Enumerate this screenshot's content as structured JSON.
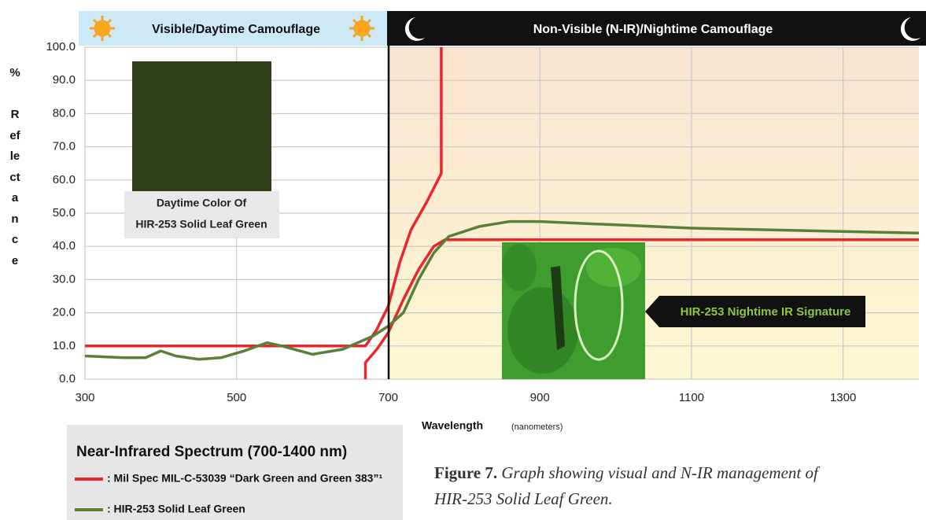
{
  "chart_data": {
    "type": "line",
    "bands": [
      "Visible/Daytime Camouflage",
      "Non-Visible (N-IR)/Nightime Camouflage"
    ],
    "xlabel": "Wavelength",
    "xunit": "(nanometers)",
    "ylabel": "Reflectance",
    "yunit": "%",
    "xlim": [
      300,
      1400
    ],
    "xticks": [
      300,
      500,
      700,
      900,
      1100,
      1300
    ],
    "ylim": [
      0,
      100
    ],
    "yticks": [
      {
        "value": 0,
        "label": "0.0"
      },
      {
        "value": 10,
        "label": "10.0"
      },
      {
        "value": 20,
        "label": "20.0"
      },
      {
        "value": 30,
        "label": "30.0"
      },
      {
        "value": 40,
        "label": "40.0"
      },
      {
        "value": 50,
        "label": "50.0"
      },
      {
        "value": 60,
        "label": "60.0"
      },
      {
        "value": 70,
        "label": "70.0"
      },
      {
        "value": 80,
        "label": "80.0"
      },
      {
        "value": 90,
        "label": "90.0"
      },
      {
        "value": 100,
        "label": "100.0"
      }
    ],
    "grid": true,
    "series": [
      {
        "name": ": Mil Spec MIL-C-53039 “Dark Green and Green 383”¹",
        "color": "#e8262b",
        "x": [
          300,
          670,
          685,
          700,
          715,
          730,
          750,
          770,
          770,
          700,
          670,
          670,
          685,
          700,
          720,
          740,
          760,
          775,
          800,
          1400
        ],
        "values": [
          10,
          10,
          15,
          22,
          35,
          45,
          53,
          62,
          100,
          null,
          0,
          5,
          9,
          14,
          24,
          33,
          40,
          42,
          42,
          42
        ]
      },
      {
        "name": ": HIR-253 Solid Leaf Green",
        "color": "#5a7f3a",
        "x": [
          300,
          350,
          380,
          400,
          420,
          450,
          480,
          510,
          540,
          560,
          600,
          640,
          680,
          700,
          720,
          740,
          760,
          780,
          820,
          860,
          900,
          1000,
          1100,
          1200,
          1300,
          1400
        ],
        "values": [
          7,
          6.5,
          6.5,
          8.5,
          7,
          6,
          6.5,
          8.5,
          11,
          10,
          7.5,
          9,
          13,
          16,
          20,
          30,
          38,
          43,
          46,
          47.5,
          47.5,
          46.5,
          45.5,
          45,
          44.5,
          44
        ]
      }
    ],
    "swatch_label": [
      "Daytime Color Of",
      "HIR-253 Solid Leaf Green"
    ],
    "annotation": "HIR-253 Nightime IR Signature",
    "legend_title": "Near-Infrared Spectrum (700-1400 nm)",
    "caption": {
      "label": "Figure 7.",
      "line1": "Graph showing visual and N-IR management of",
      "line2": "HIR-253 Solid Leaf Green."
    }
  }
}
